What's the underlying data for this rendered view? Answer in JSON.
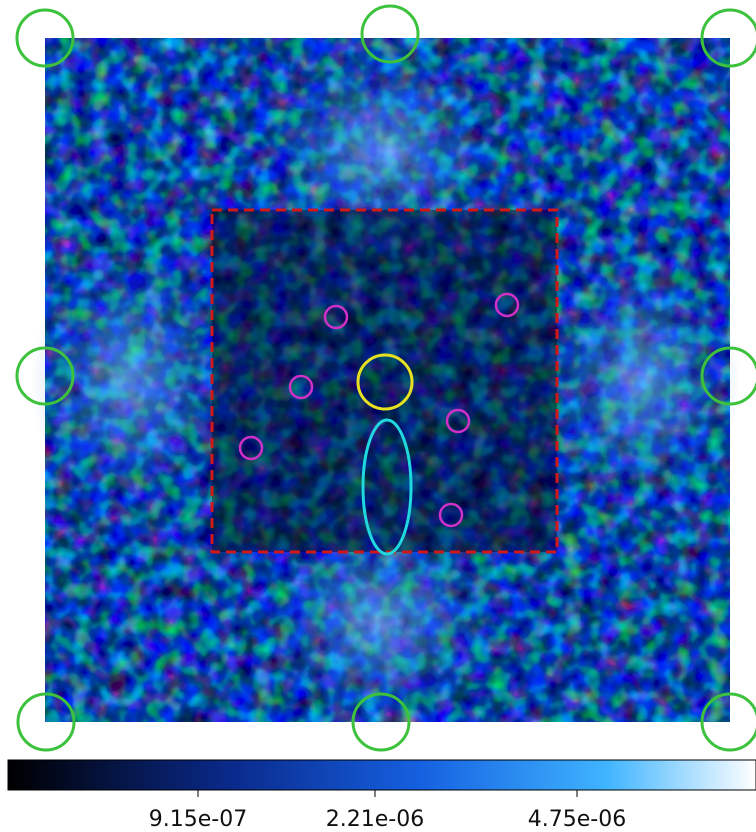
{
  "colorbar": {
    "tick_labels": [
      "9.15e-07",
      "2.21e-06",
      "4.75e-06"
    ]
  }
}
